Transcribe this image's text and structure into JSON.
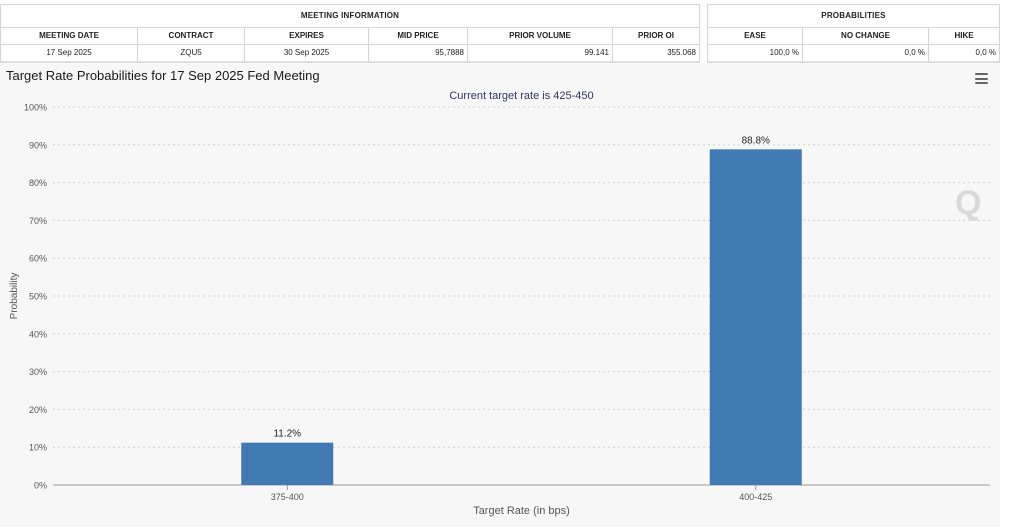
{
  "meeting_info": {
    "title": "MEETING INFORMATION",
    "headers": [
      "MEETING DATE",
      "CONTRACT",
      "EXPIRES",
      "MID PRICE",
      "PRIOR VOLUME",
      "PRIOR OI"
    ],
    "values": [
      "17 Sep 2025",
      "ZQU5",
      "30 Sep 2025",
      "95,7888",
      "99.141",
      "355.068"
    ]
  },
  "probabilities": {
    "title": "PROBABILITIES",
    "headers": [
      "EASE",
      "NO CHANGE",
      "HIKE"
    ],
    "values": [
      "100,0 %",
      "0,0 %",
      "0,0 %"
    ]
  },
  "watermark_letter": "Q",
  "chart_data": {
    "type": "bar",
    "title": "Target Rate Probabilities for 17 Sep 2025 Fed Meeting",
    "subtitle": "Current target rate is 425-450",
    "xlabel": "Target Rate (in bps)",
    "ylabel": "Probability",
    "categories": [
      "375-400",
      "400-425"
    ],
    "values": [
      11.2,
      88.8
    ],
    "data_labels": [
      "11.2%",
      "88.8%"
    ],
    "ylim": [
      0,
      100
    ],
    "yticks": [
      0,
      10,
      20,
      30,
      40,
      50,
      60,
      70,
      80,
      90,
      100
    ],
    "ytick_labels": [
      "0%",
      "10%",
      "20%",
      "30%",
      "40%",
      "50%",
      "60%",
      "70%",
      "80%",
      "90%",
      "100%"
    ],
    "grid": true,
    "legend": "none",
    "bar_color": "#4179b2"
  }
}
